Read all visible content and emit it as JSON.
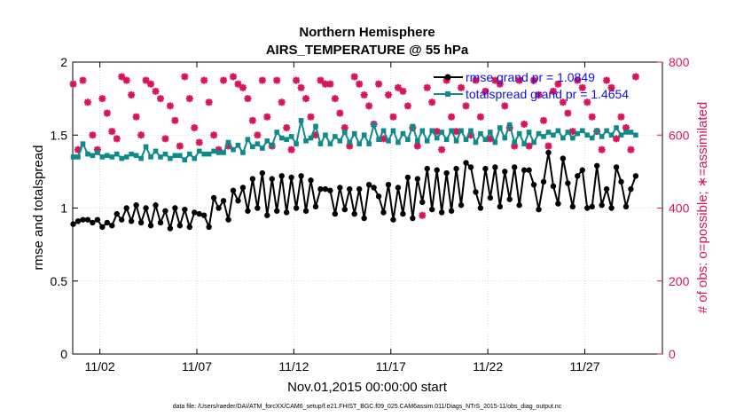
{
  "chart_data": {
    "type": "line",
    "title": "Northern Hemisphere",
    "subtitle": "AIRS_TEMPERATURE @ 55 hPa",
    "xlabel": "Nov.01,2015 00:00:00 start",
    "ylabel": "rmse and totalspread",
    "ylabel_right": "# of obs: o=possible; ∗=assimilated",
    "xlim": [
      0.6,
      31.0
    ],
    "ylim": [
      0,
      2
    ],
    "ylim_right": [
      0,
      800
    ],
    "x_ticks": [
      {
        "value": 2,
        "label": "11/02"
      },
      {
        "value": 7,
        "label": "11/07"
      },
      {
        "value": 12,
        "label": "11/12"
      },
      {
        "value": 17,
        "label": "11/17"
      },
      {
        "value": 22,
        "label": "11/22"
      },
      {
        "value": 27,
        "label": "11/27"
      }
    ],
    "y_ticks": [
      {
        "value": 0,
        "label": "0"
      },
      {
        "value": 0.5,
        "label": "0.5"
      },
      {
        "value": 1,
        "label": "1"
      },
      {
        "value": 1.5,
        "label": "1.5"
      },
      {
        "value": 2,
        "label": "2"
      }
    ],
    "y_ticks_right": [
      {
        "value": 0,
        "label": "0"
      },
      {
        "value": 200,
        "label": "200"
      },
      {
        "value": 400,
        "label": "400"
      },
      {
        "value": 600,
        "label": "600"
      },
      {
        "value": 800,
        "label": "800"
      }
    ],
    "series": [
      {
        "name": "rmse",
        "legend": "rmse grand pr = 1.0849",
        "color": "#000000",
        "axis": "left",
        "x_start": 0.625,
        "x_step": 0.25,
        "values": [
          0.89,
          0.91,
          0.92,
          0.92,
          0.9,
          0.92,
          0.87,
          0.9,
          0.88,
          0.96,
          0.92,
          1.0,
          0.91,
          1.02,
          0.9,
          1.0,
          0.88,
          1.02,
          0.9,
          0.98,
          0.86,
          1.0,
          0.88,
          0.99,
          0.87,
          0.97,
          0.96,
          0.95,
          0.87,
          1.07,
          1.0,
          1.05,
          0.92,
          1.12,
          1.05,
          1.14,
          0.98,
          1.2,
          1.0,
          1.24,
          0.95,
          1.2,
          0.98,
          1.22,
          0.97,
          1.21,
          1.0,
          1.22,
          0.98,
          1.19,
          1.01,
          1.13,
          1.13,
          1.12,
          0.96,
          1.14,
          0.99,
          1.13,
          0.96,
          1.13,
          0.93,
          1.16,
          1.14,
          1.08,
          0.97,
          1.16,
          0.92,
          1.14,
          0.96,
          1.21,
          0.93,
          1.2,
          1.04,
          1.27,
          0.99,
          1.26,
          0.97,
          1.24,
          0.98,
          1.27,
          1.02,
          1.31,
          1.28,
          1.11,
          1.0,
          1.27,
          1.07,
          1.28,
          1.01,
          1.25,
          1.06,
          1.28,
          1.02,
          1.26,
          1.26,
          1.16,
          0.99,
          1.18,
          1.38,
          1.15,
          1.03,
          1.34,
          1.17,
          1.01,
          1.22,
          1.26,
          1.0,
          1.01,
          1.29,
          1.02,
          1.13,
          1.0,
          1.28,
          1.18,
          1.01,
          1.13,
          1.22
        ]
      },
      {
        "name": "totalspread",
        "legend": "totalspread grand pr = 1.4654",
        "color": "#0f8a8a",
        "axis": "left",
        "x_start": 0.625,
        "x_step": 0.25,
        "values": [
          1.35,
          1.35,
          1.44,
          1.37,
          1.36,
          1.38,
          1.35,
          1.36,
          1.35,
          1.37,
          1.34,
          1.35,
          1.37,
          1.36,
          1.34,
          1.42,
          1.35,
          1.39,
          1.35,
          1.37,
          1.34,
          1.36,
          1.36,
          1.33,
          1.37,
          1.34,
          1.39,
          1.37,
          1.37,
          1.39,
          1.38,
          1.38,
          1.45,
          1.4,
          1.43,
          1.38,
          1.47,
          1.42,
          1.44,
          1.41,
          1.46,
          1.43,
          1.52,
          1.48,
          1.47,
          1.49,
          1.44,
          1.6,
          1.46,
          1.48,
          1.56,
          1.44,
          1.5,
          1.44,
          1.49,
          1.46,
          1.52,
          1.45,
          1.51,
          1.44,
          1.5,
          1.44,
          1.57,
          1.47,
          1.53,
          1.46,
          1.53,
          1.45,
          1.51,
          1.47,
          1.56,
          1.46,
          1.53,
          1.46,
          1.53,
          1.48,
          1.52,
          1.47,
          1.53,
          1.46,
          1.53,
          1.47,
          1.53,
          1.45,
          1.51,
          1.47,
          1.52,
          1.45,
          1.55,
          1.48,
          1.57,
          1.45,
          1.51,
          1.44,
          1.52,
          1.45,
          1.51,
          1.49,
          1.52,
          1.5,
          1.53,
          1.48,
          1.52,
          1.48,
          1.51,
          1.53,
          1.5,
          1.48,
          1.53,
          1.49,
          1.53,
          1.5,
          1.55,
          1.5,
          1.52,
          1.52,
          1.5
        ]
      },
      {
        "name": "obs",
        "legend": "",
        "color": "#d9135c",
        "axis": "right",
        "x_start": 0.625,
        "x_step": 0.25,
        "values": [
          740,
          560,
          750,
          690,
          600,
          560,
          700,
          660,
          610,
          590,
          760,
          750,
          710,
          650,
          600,
          750,
          740,
          720,
          700,
          590,
          680,
          640,
          570,
          760,
          700,
          620,
          580,
          750,
          690,
          600,
          560,
          750,
          570,
          760,
          740,
          730,
          700,
          640,
          600,
          750,
          650,
          570,
          750,
          690,
          620,
          560,
          750,
          730,
          700,
          650,
          600,
          750,
          740,
          740,
          700,
          660,
          620,
          570,
          760,
          740,
          710,
          680,
          630,
          740,
          590,
          710,
          650,
          730,
          720,
          680,
          620,
          570,
          380,
          730,
          690,
          610,
          560,
          750,
          650,
          610,
          730,
          680,
          600,
          750,
          650,
          720,
          590,
          750,
          740,
          680,
          620,
          570,
          750,
          630,
          570,
          750,
          710,
          640,
          570,
          720,
          740,
          690,
          660,
          610,
          750,
          730,
          690,
          650,
          610,
          560,
          750,
          730,
          590,
          650,
          620,
          560,
          760
        ]
      }
    ]
  },
  "footnote": "data file: /Users/raeder/DAI/ATM_forcXX/CAM6_setup/f.e21.FHIST_BGC.f09_025.CAM6assim.011/Diags_NTrS_2015-11/obs_diag_output.nc"
}
